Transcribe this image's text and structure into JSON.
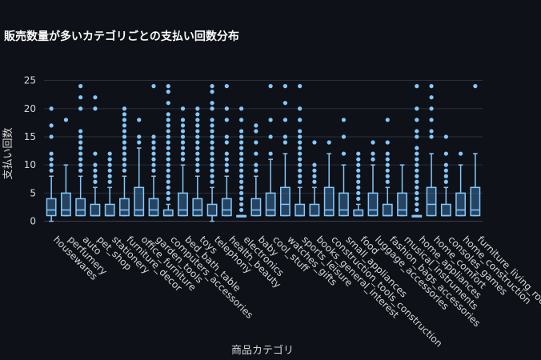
{
  "chart_data": {
    "type": "box",
    "title": "販売数量が多いカテゴリごとの支払い回数分布",
    "xlabel": "商品カテゴリ",
    "ylabel": "支払い回数",
    "ylim": [
      -1.2,
      26.5
    ],
    "yticks": [
      0,
      5,
      10,
      15,
      20,
      25
    ],
    "grid": true,
    "color": "#83c9ff",
    "background": "#0e1117",
    "categories": [
      "housewares",
      "perfumery",
      "auto",
      "pet_shop",
      "stationery",
      "furniture_decor",
      "office_furniture",
      "garden_tools",
      "computers_accessories",
      "bed_bath_table",
      "toys",
      "telephony",
      "health_beauty",
      "electronics",
      "baby",
      "cool_stuff",
      "watches_gifts",
      "sports_leisure",
      "books_general_interest",
      "construction_tools_construction",
      "small_appliances",
      "food",
      "luggage_accessories",
      "fashion_bags_accessories",
      "musical_instruments",
      "home_appliances",
      "home_comfort",
      "consoles_games",
      "home_construction",
      "furniture_living_room"
    ],
    "boxes": [
      {
        "q1": 1,
        "median": 2,
        "q3": 4,
        "lower": 0,
        "upper": 8,
        "outliers": [
          9,
          10,
          11,
          12,
          15,
          17,
          20
        ]
      },
      {
        "q1": 1,
        "median": 2,
        "q3": 5,
        "lower": 1,
        "upper": 10,
        "outliers": [
          18
        ]
      },
      {
        "q1": 1,
        "median": 2,
        "q3": 4,
        "lower": 1,
        "upper": 8,
        "outliers": [
          9,
          10,
          11,
          12,
          13,
          14,
          15,
          16,
          20,
          22,
          24
        ]
      },
      {
        "q1": 1,
        "median": 1,
        "q3": 3,
        "lower": 1,
        "upper": 6,
        "outliers": [
          7,
          8,
          9,
          10,
          12,
          20,
          22
        ]
      },
      {
        "q1": 1,
        "median": 1,
        "q3": 3,
        "lower": 1,
        "upper": 6,
        "outliers": [
          7,
          8,
          9,
          10,
          11,
          12
        ]
      },
      {
        "q1": 1,
        "median": 2,
        "q3": 4,
        "lower": 1,
        "upper": 8,
        "outliers": [
          9,
          10,
          11,
          12,
          13,
          14,
          15,
          16,
          17,
          18,
          19,
          20
        ]
      },
      {
        "q1": 1,
        "median": 2,
        "q3": 6,
        "lower": 1,
        "upper": 13,
        "outliers": [
          14,
          15,
          18
        ]
      },
      {
        "q1": 1,
        "median": 2,
        "q3": 4,
        "lower": 1,
        "upper": 8,
        "outliers": [
          9,
          10,
          11,
          12,
          13,
          14,
          15,
          24
        ]
      },
      {
        "q1": 1,
        "median": 1,
        "q3": 2,
        "lower": 1,
        "upper": 3,
        "outliers": [
          4,
          5,
          6,
          7,
          8,
          9,
          10,
          11,
          12,
          13,
          14,
          15,
          16,
          17,
          18,
          19,
          21,
          23,
          24
        ]
      },
      {
        "q1": 1,
        "median": 2,
        "q3": 5,
        "lower": 1,
        "upper": 10,
        "outliers": [
          11,
          12,
          13,
          14,
          15,
          16,
          17,
          18,
          20
        ]
      },
      {
        "q1": 1,
        "median": 2,
        "q3": 4,
        "lower": 1,
        "upper": 8,
        "outliers": [
          9,
          10,
          11,
          12,
          13,
          14,
          15,
          16,
          17,
          18,
          19,
          20
        ]
      },
      {
        "q1": 1,
        "median": 1,
        "q3": 3,
        "lower": 0,
        "upper": 6,
        "outliers": [
          7,
          8,
          9,
          10,
          11,
          12,
          13,
          14,
          15,
          16,
          17,
          18,
          20,
          21,
          23,
          24
        ]
      },
      {
        "q1": 1,
        "median": 2,
        "q3": 4,
        "lower": 1,
        "upper": 8,
        "outliers": [
          9,
          10,
          11,
          12,
          14,
          15,
          18,
          20,
          24
        ]
      },
      {
        "q1": 1,
        "median": 1,
        "q3": 1,
        "lower": 1,
        "upper": 1,
        "outliers": [
          2,
          3,
          4,
          5,
          6,
          7,
          8,
          9,
          10,
          11,
          12,
          13,
          14,
          15,
          16,
          18,
          20
        ]
      },
      {
        "q1": 1,
        "median": 2,
        "q3": 4,
        "lower": 1,
        "upper": 8,
        "outliers": [
          9,
          10,
          12,
          14,
          16,
          17
        ]
      },
      {
        "q1": 1,
        "median": 2,
        "q3": 5,
        "lower": 1,
        "upper": 11,
        "outliers": [
          12,
          15,
          18,
          24
        ]
      },
      {
        "q1": 1,
        "median": 3,
        "q3": 6,
        "lower": 1,
        "upper": 12,
        "outliers": [
          14,
          15,
          18,
          21,
          24
        ]
      },
      {
        "q1": 1,
        "median": 1,
        "q3": 3,
        "lower": 1,
        "upper": 6,
        "outliers": [
          7,
          8,
          9,
          10,
          11,
          12,
          13,
          14,
          15,
          16,
          18,
          20,
          24
        ]
      },
      {
        "q1": 1,
        "median": 1,
        "q3": 3,
        "lower": 1,
        "upper": 6,
        "outliers": [
          7,
          8,
          9,
          10,
          14
        ]
      },
      {
        "q1": 1,
        "median": 2,
        "q3": 6,
        "lower": 1,
        "upper": 12,
        "outliers": [
          14
        ]
      },
      {
        "q1": 1,
        "median": 2,
        "q3": 5,
        "lower": 1,
        "upper": 10,
        "outliers": [
          12,
          15,
          18
        ]
      },
      {
        "q1": 1,
        "median": 1,
        "q3": 2,
        "lower": 1,
        "upper": 3,
        "outliers": [
          4,
          5,
          6,
          7,
          8,
          9,
          10,
          11,
          12
        ]
      },
      {
        "q1": 1,
        "median": 2,
        "q3": 5,
        "lower": 1,
        "upper": 10,
        "outliers": [
          11,
          12,
          14
        ]
      },
      {
        "q1": 1,
        "median": 1,
        "q3": 3,
        "lower": 1,
        "upper": 6,
        "outliers": [
          7,
          8,
          9,
          10,
          11,
          12,
          14,
          18
        ]
      },
      {
        "q1": 1,
        "median": 2,
        "q3": 5,
        "lower": 1,
        "upper": 10,
        "outliers": []
      },
      {
        "q1": 1,
        "median": 1,
        "q3": 1,
        "lower": 1,
        "upper": 1,
        "outliers": [
          2,
          3,
          4,
          5,
          6,
          7,
          8,
          9,
          10,
          11,
          12,
          13,
          15,
          16,
          18,
          20,
          24
        ]
      },
      {
        "q1": 1,
        "median": 3,
        "q3": 6,
        "lower": 1,
        "upper": 12,
        "outliers": [
          15,
          16,
          18,
          20,
          22,
          24
        ]
      },
      {
        "q1": 1,
        "median": 1,
        "q3": 3,
        "lower": 1,
        "upper": 6,
        "outliers": [
          7,
          8,
          9,
          10,
          12,
          15
        ]
      },
      {
        "q1": 1,
        "median": 2,
        "q3": 5,
        "lower": 1,
        "upper": 10,
        "outliers": [
          12
        ]
      },
      {
        "q1": 1,
        "median": 2,
        "q3": 6,
        "lower": 1,
        "upper": 12,
        "outliers": [
          24
        ]
      }
    ]
  }
}
